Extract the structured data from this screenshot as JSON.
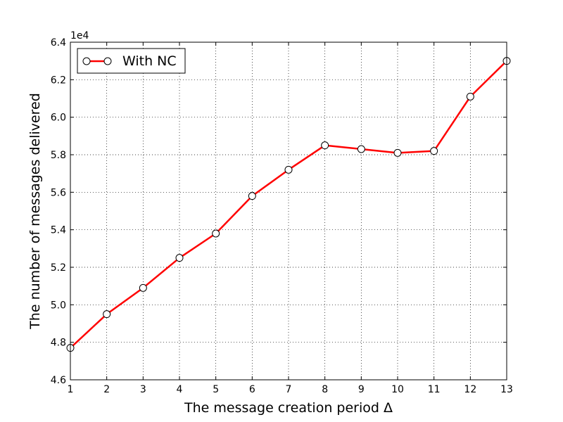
{
  "chart_data": {
    "type": "line",
    "xlabel": "The message creation period Δ",
    "ylabel": "The number of messages delivered",
    "y_offset_label": "1e4",
    "xlim": [
      1,
      13
    ],
    "ylim": [
      4.6,
      6.4
    ],
    "x_ticks": [
      "1",
      "2",
      "3",
      "4",
      "5",
      "6",
      "7",
      "8",
      "9",
      "10",
      "11",
      "12",
      "13"
    ],
    "y_ticks": [
      "4.6",
      "4.8",
      "5.0",
      "5.2",
      "5.4",
      "5.6",
      "5.8",
      "6.0",
      "6.2",
      "6.4"
    ],
    "grid": true,
    "legend_position": "top-left",
    "series": [
      {
        "name": "With NC",
        "color": "#ff0000",
        "marker": "circle-open",
        "x": [
          1,
          2,
          3,
          4,
          5,
          6,
          7,
          8,
          9,
          10,
          11,
          12,
          13
        ],
        "values": [
          4.77,
          4.95,
          5.09,
          5.25,
          5.38,
          5.58,
          5.72,
          5.85,
          5.83,
          5.81,
          5.82,
          6.11,
          6.3
        ]
      }
    ]
  }
}
